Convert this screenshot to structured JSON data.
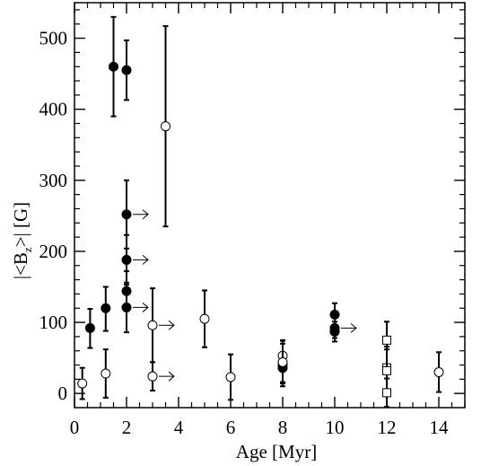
{
  "chart_data": {
    "type": "scatter",
    "xlabel": "Age [Myr]",
    "ylabel": "|<B",
    "ylabel_sub": "z",
    "ylabel_tail": ">| [G]",
    "xlim": [
      0,
      15
    ],
    "ylim": [
      -20,
      550
    ],
    "x_ticks": [
      0,
      2,
      4,
      6,
      8,
      10,
      12,
      14
    ],
    "y_ticks": [
      0,
      100,
      200,
      300,
      400,
      500
    ],
    "x_tick_labels": [
      "0",
      "2",
      "4",
      "6",
      "8",
      "10",
      "12",
      "14"
    ],
    "y_tick_labels": [
      "0",
      "100",
      "200",
      "300",
      "400",
      "500"
    ],
    "minor_x_step": 0.5,
    "minor_y_step": 20,
    "grid": false,
    "series": [
      {
        "marker": "filled-circle",
        "points": [
          {
            "x": 0.6,
            "y": 92,
            "err_lo": 28,
            "err_hi": 27,
            "arrow": false
          },
          {
            "x": 1.2,
            "y": 120,
            "err_lo": 32,
            "err_hi": 30,
            "arrow": false
          },
          {
            "x": 1.5,
            "y": 460,
            "err_lo": 70,
            "err_hi": 70,
            "arrow": false
          },
          {
            "x": 2.0,
            "y": 455,
            "err_lo": 42,
            "err_hi": 42,
            "arrow": false
          },
          {
            "x": 2.0,
            "y": 252,
            "err_lo": 48,
            "err_hi": 48,
            "arrow": true
          },
          {
            "x": 2.0,
            "y": 188,
            "err_lo": 35,
            "err_hi": 35,
            "arrow": true
          },
          {
            "x": 2.0,
            "y": 144,
            "err_lo": 28,
            "err_hi": 28,
            "arrow": false
          },
          {
            "x": 2.0,
            "y": 121,
            "err_lo": 35,
            "err_hi": 35,
            "arrow": true
          },
          {
            "x": 8.0,
            "y": 40,
            "err_lo": 30,
            "err_hi": 30,
            "arrow": false
          },
          {
            "x": 8.0,
            "y": 36,
            "err_lo": 20,
            "err_hi": 20,
            "arrow": false
          },
          {
            "x": 10.0,
            "y": 111,
            "err_lo": 16,
            "err_hi": 16,
            "arrow": false
          },
          {
            "x": 10.0,
            "y": 92,
            "err_lo": 14,
            "err_hi": 14,
            "arrow": true
          },
          {
            "x": 10.0,
            "y": 87,
            "err_lo": 14,
            "err_hi": 14,
            "arrow": false
          }
        ]
      },
      {
        "marker": "open-circle",
        "points": [
          {
            "x": 0.3,
            "y": 14,
            "err_lo": 22,
            "err_hi": 22,
            "arrow": false
          },
          {
            "x": 1.2,
            "y": 28,
            "err_lo": 34,
            "err_hi": 34,
            "arrow": false
          },
          {
            "x": 3.0,
            "y": 96,
            "err_lo": 52,
            "err_hi": 52,
            "arrow": true
          },
          {
            "x": 3.0,
            "y": 24,
            "err_lo": 20,
            "err_hi": 20,
            "arrow": true
          },
          {
            "x": 3.5,
            "y": 376,
            "err_lo": 141,
            "err_hi": 141,
            "arrow": false
          },
          {
            "x": 5.0,
            "y": 105,
            "err_lo": 40,
            "err_hi": 40,
            "arrow": false
          },
          {
            "x": 6.0,
            "y": 23,
            "err_lo": 32,
            "err_hi": 32,
            "arrow": false
          },
          {
            "x": 8.0,
            "y": 53,
            "err_lo": 22,
            "err_hi": 22,
            "arrow": false
          },
          {
            "x": 8.0,
            "y": 44,
            "err_lo": 30,
            "err_hi": 30,
            "arrow": false
          },
          {
            "x": 14.0,
            "y": 30,
            "err_lo": 28,
            "err_hi": 28,
            "arrow": false
          }
        ]
      },
      {
        "marker": "open-square",
        "points": [
          {
            "x": 12.0,
            "y": 75,
            "err_lo": 75,
            "err_hi": 26,
            "arrow": false
          },
          {
            "x": 12.0,
            "y": 36,
            "err_lo": 30,
            "err_hi": 30,
            "arrow": false
          },
          {
            "x": 12.0,
            "y": 32,
            "err_lo": 30,
            "err_hi": 30,
            "arrow": false
          },
          {
            "x": 12.0,
            "y": 1,
            "err_lo": 20,
            "err_hi": 20,
            "arrow": false
          }
        ]
      }
    ]
  }
}
